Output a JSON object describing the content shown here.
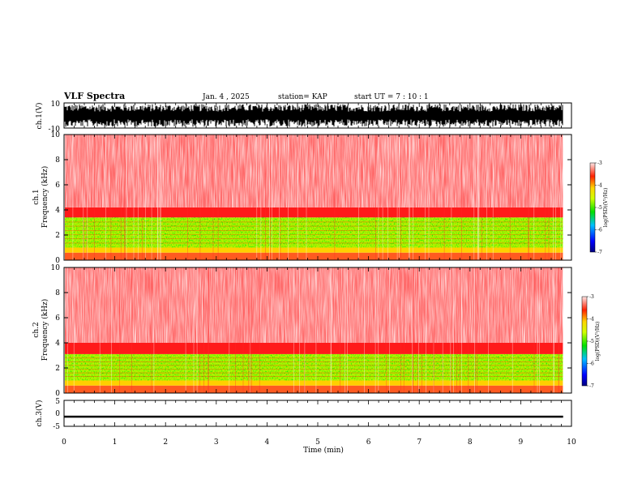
{
  "header": {
    "title": "VLF Spectra",
    "date": "Jan. 4 , 2025",
    "station": "station= KAP",
    "start": "start UT =  7 : 10 : 1"
  },
  "colors": {
    "hot": "#ff0000",
    "mid": "#ffd400",
    "green": "#00e000",
    "background": "#ffffff"
  },
  "chart_data": [
    {
      "type": "line",
      "name": "ch1-waveform",
      "ylabel": "ch.1(V)",
      "ylim": [
        -10,
        10
      ],
      "yticks": [
        "10",
        "-10"
      ],
      "xlim": [
        0,
        10
      ],
      "description_values": {
        "amplitude_min": -9,
        "amplitude_max": 9
      }
    },
    {
      "type": "heatmap",
      "name": "ch1-spectrogram",
      "ylabel_top": "ch.1",
      "ylabel": "Frequency (kHz)",
      "ylim": [
        0,
        10
      ],
      "yticks": [
        "0",
        "2",
        "4",
        "6",
        "8",
        "10"
      ],
      "xlim": [
        0,
        9.83
      ],
      "bands": [
        {
          "from_khz": 0,
          "to_khz": 0.6,
          "level": "red-yellow"
        },
        {
          "from_khz": 0.6,
          "to_khz": 1.0,
          "level": "yellow"
        },
        {
          "from_khz": 1.0,
          "to_khz": 3.4,
          "level": "green-yellow"
        },
        {
          "from_khz": 3.4,
          "to_khz": 4.2,
          "level": "red"
        },
        {
          "from_khz": 4.2,
          "to_khz": 10,
          "level": "light-red"
        }
      ],
      "colorbar": {
        "label": "log(PSD)(V²/Hz)",
        "ticks": [
          "-3",
          "-4",
          "-5",
          "-6",
          "-7"
        ]
      }
    },
    {
      "type": "heatmap",
      "name": "ch2-spectrogram",
      "ylabel_top": "ch.2",
      "ylabel": "Frequency (kHz)",
      "ylim": [
        0,
        10
      ],
      "yticks": [
        "0",
        "2",
        "4",
        "6",
        "8",
        "10"
      ],
      "xlim": [
        0,
        9.83
      ],
      "bands": [
        {
          "from_khz": 0,
          "to_khz": 0.6,
          "level": "red-yellow"
        },
        {
          "from_khz": 0.6,
          "to_khz": 1.0,
          "level": "yellow"
        },
        {
          "from_khz": 1.0,
          "to_khz": 3.1,
          "level": "green-yellow"
        },
        {
          "from_khz": 3.1,
          "to_khz": 4.0,
          "level": "red"
        },
        {
          "from_khz": 4.0,
          "to_khz": 10,
          "level": "light-red"
        }
      ],
      "colorbar": {
        "label": "log(PSD)(V²/Hz)",
        "ticks": [
          "-3",
          "-4",
          "-5",
          "-6",
          "-7"
        ]
      }
    },
    {
      "type": "line",
      "name": "ch3-waveform",
      "ylabel": "ch.3(V)",
      "ylim": [
        -5,
        5
      ],
      "yticks": [
        "5",
        "0",
        "-5"
      ],
      "xlim": [
        0,
        10
      ],
      "description_values": {
        "level_v": -1.3,
        "spread_v": 0.4
      }
    }
  ],
  "xaxis": {
    "label": "Time (min)",
    "ticks": [
      "0",
      "1",
      "2",
      "3",
      "4",
      "5",
      "6",
      "7",
      "8",
      "9",
      "10"
    ],
    "xlim": [
      0,
      10
    ],
    "data_end": 9.83
  }
}
